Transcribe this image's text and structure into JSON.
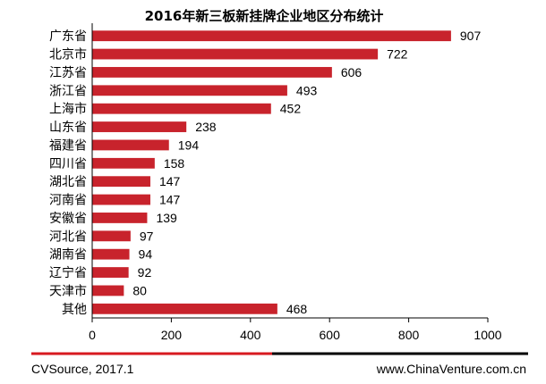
{
  "colors": {
    "bar": "#c8232c",
    "axis": "#000000",
    "footer_red": "#d7191f",
    "footer_black": "#000000"
  },
  "footer": {
    "source": "CVSource, 2017.1",
    "website": "www.ChinaVenture.com.cn"
  },
  "chart_data": {
    "type": "bar",
    "orientation": "horizontal",
    "title": "2016年新三板新挂牌企业地区分布统计",
    "categories": [
      "广东省",
      "北京市",
      "江苏省",
      "浙江省",
      "上海市",
      "山东省",
      "福建省",
      "四川省",
      "湖北省",
      "河南省",
      "安徽省",
      "河北省",
      "湖南省",
      "辽宁省",
      "天津市",
      "其他"
    ],
    "values": [
      907,
      722,
      606,
      493,
      452,
      238,
      194,
      158,
      147,
      147,
      139,
      97,
      94,
      92,
      80,
      468
    ],
    "xlim": [
      0,
      1000
    ],
    "xticks": [
      0,
      200,
      400,
      600,
      800,
      1000
    ],
    "xlabel": "",
    "ylabel": "",
    "grid": false,
    "legend": "none"
  }
}
